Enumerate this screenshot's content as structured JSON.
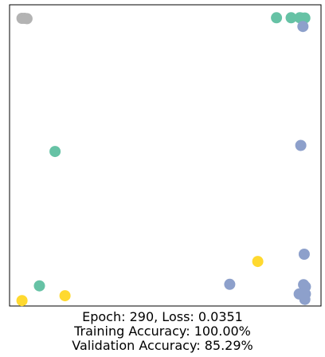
{
  "chart_data": {
    "type": "scatter",
    "title": "",
    "xlabel": "",
    "ylabel": "",
    "xlim": [
      0,
      1
    ],
    "ylim": [
      0,
      1
    ],
    "grid": false,
    "axes_ticks": false,
    "caption_lines": [
      "Epoch: 290, Loss: 0.0351",
      "Training Accuracy: 100.00%",
      " Validation Accuracy: 85.29%"
    ],
    "series": [
      {
        "color": "#b3b3b3",
        "points": [
          {
            "x": 0.04,
            "y": 0.955
          },
          {
            "x": 0.048,
            "y": 0.955
          },
          {
            "x": 0.056,
            "y": 0.954
          }
        ]
      },
      {
        "color": "#66c2a5",
        "points": [
          {
            "x": 0.857,
            "y": 0.957
          },
          {
            "x": 0.904,
            "y": 0.957
          },
          {
            "x": 0.932,
            "y": 0.957
          },
          {
            "x": 0.948,
            "y": 0.956
          },
          {
            "x": 0.938,
            "y": 0.956
          },
          {
            "x": 0.146,
            "y": 0.513
          },
          {
            "x": 0.096,
            "y": 0.067
          }
        ]
      },
      {
        "color": "#8da0cb",
        "points": [
          {
            "x": 0.942,
            "y": 0.928
          },
          {
            "x": 0.935,
            "y": 0.533
          },
          {
            "x": 0.946,
            "y": 0.172
          },
          {
            "x": 0.944,
            "y": 0.071
          },
          {
            "x": 0.95,
            "y": 0.064
          },
          {
            "x": 0.93,
            "y": 0.04
          },
          {
            "x": 0.95,
            "y": 0.04
          },
          {
            "x": 0.948,
            "y": 0.022
          },
          {
            "x": 0.707,
            "y": 0.072
          }
        ]
      },
      {
        "color": "#ffd92f",
        "points": [
          {
            "x": 0.797,
            "y": 0.148
          },
          {
            "x": 0.178,
            "y": 0.034
          },
          {
            "x": 0.04,
            "y": 0.018
          }
        ]
      }
    ]
  }
}
